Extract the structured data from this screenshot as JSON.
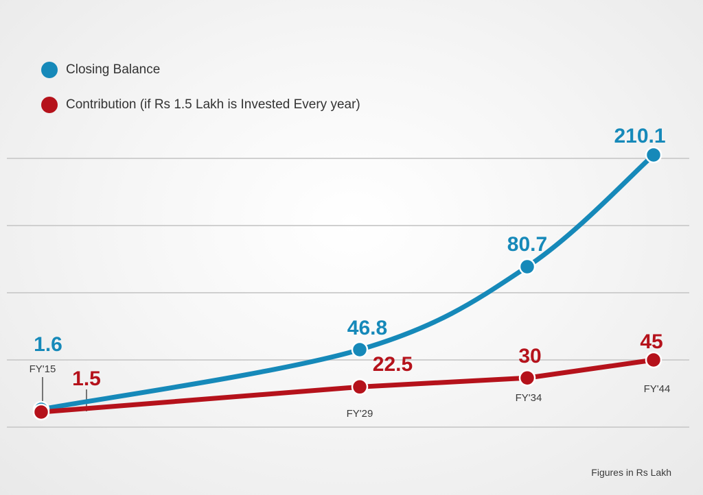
{
  "colors": {
    "closing": "#1689b9",
    "contribution": "#b5121b",
    "grid": "#cfcfcf",
    "tick_text": "#3a3a3a"
  },
  "legend": {
    "closing_label": "Closing Balance",
    "contribution_label": "Contribution (if Rs 1.5 Lakh is Invested Every year)"
  },
  "footnote": "Figures in Rs Lakh",
  "chart_data": {
    "type": "line",
    "x": [
      "FY'15",
      "FY'29",
      "FY'34",
      "FY'44"
    ],
    "series": [
      {
        "name": "Closing Balance",
        "values": [
          1.6,
          46.8,
          80.7,
          210.1
        ],
        "labels": [
          "1.6",
          "46.8",
          "80.7",
          "210.1"
        ]
      },
      {
        "name": "Contribution (if Rs 1.5 Lakh is Invested Every year)",
        "values": [
          1.5,
          22.5,
          30,
          45
        ],
        "labels": [
          "1.5",
          "22.5",
          "30",
          "45"
        ]
      }
    ],
    "legend_position": "top-left",
    "grid": true,
    "note": "Figures in Rs Lakh"
  }
}
